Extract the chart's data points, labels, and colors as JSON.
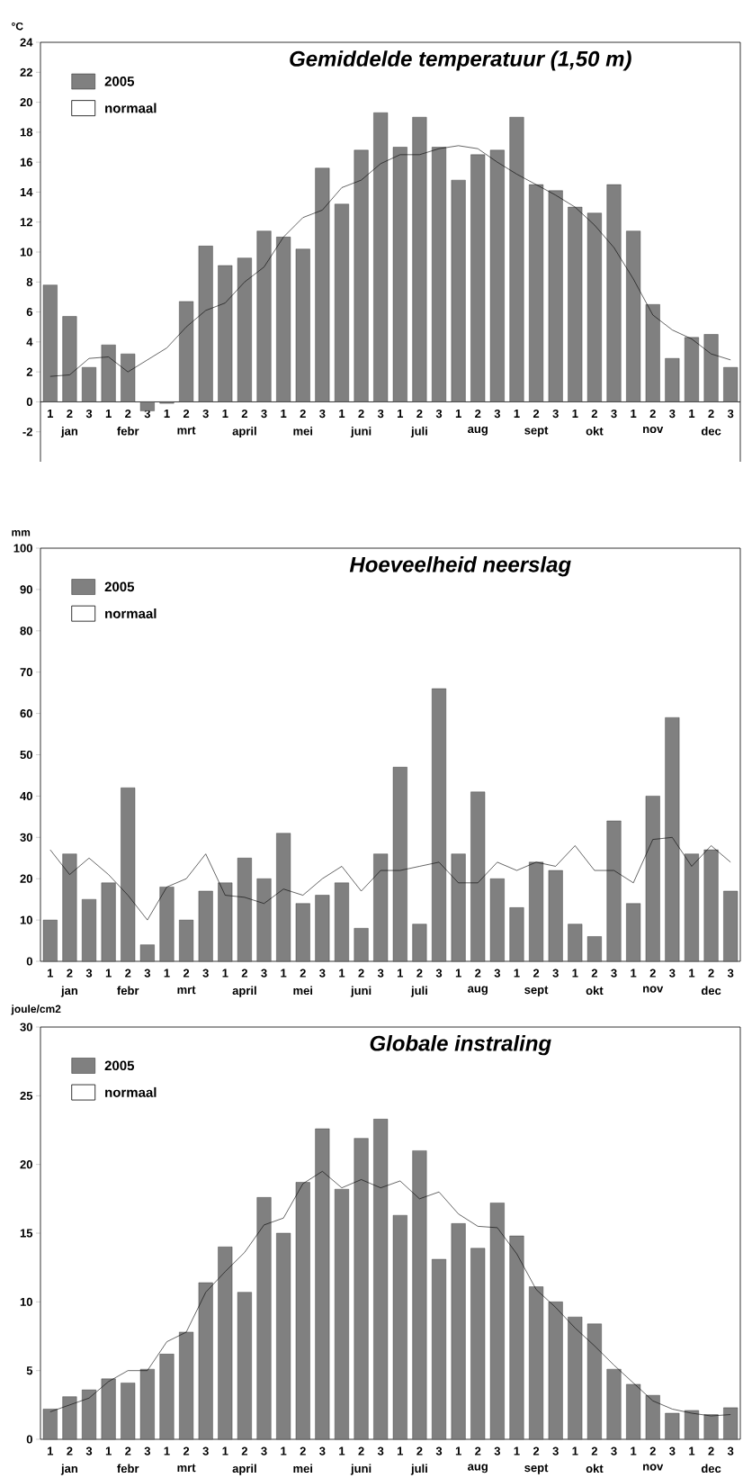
{
  "chart_data": [
    {
      "type": "bar",
      "title": "Gemiddelde temperatuur (1,50 m)",
      "ylabel": "°C",
      "legend": "top left",
      "categories": [
        "1",
        "2",
        "3",
        "1",
        "2",
        "3",
        "1",
        "2",
        "3",
        "1",
        "2",
        "3",
        "1",
        "2",
        "3",
        "1",
        "2",
        "3",
        "1",
        "2",
        "3",
        "1",
        "2",
        "3",
        "1",
        "2",
        "3",
        "1",
        "2",
        "3",
        "1",
        "2",
        "3",
        "1",
        "2",
        "3"
      ],
      "annotations": [
        "jan",
        "febr",
        "mrt",
        "april",
        "mei",
        "juni",
        "juli",
        "aug",
        "sept",
        "okt",
        "nov",
        "dec"
      ],
      "ylim": [
        -4,
        24
      ],
      "yticks": [
        -2,
        0,
        2,
        4,
        6,
        8,
        10,
        12,
        14,
        16,
        18,
        20,
        22,
        24
      ],
      "series": [
        {
          "name": "2005",
          "color": "#808080",
          "values": [
            7.8,
            5.7,
            2.3,
            3.8,
            3.2,
            -0.6,
            -0.1,
            6.7,
            10.4,
            9.1,
            9.6,
            11.4,
            11.0,
            10.2,
            15.6,
            13.2,
            16.8,
            19.3,
            17.0,
            19.0,
            17.0,
            14.8,
            16.5,
            16.8,
            19.0,
            14.5,
            14.1,
            13.0,
            12.6,
            14.5,
            11.4,
            6.5,
            2.9,
            4.3,
            4.5,
            2.3
          ]
        },
        {
          "name": "normaal",
          "type": "line",
          "color": "#000000",
          "values": [
            1.7,
            1.8,
            2.9,
            3.0,
            2.0,
            2.8,
            3.6,
            5.0,
            6.1,
            6.6,
            8.0,
            9.0,
            11.0,
            12.3,
            12.8,
            14.3,
            14.8,
            15.9,
            16.5,
            16.5,
            16.9,
            17.1,
            16.9,
            16.0,
            15.2,
            14.5,
            13.8,
            13.0,
            11.8,
            10.3,
            8.2,
            5.8,
            4.8,
            4.2,
            3.2,
            2.8
          ]
        }
      ]
    },
    {
      "type": "bar",
      "title": "Hoeveelheid neerslag",
      "ylabel": "mm",
      "legend": "top left",
      "categories": [
        "1",
        "2",
        "3",
        "1",
        "2",
        "3",
        "1",
        "2",
        "3",
        "1",
        "2",
        "3",
        "1",
        "2",
        "3",
        "1",
        "2",
        "3",
        "1",
        "2",
        "3",
        "1",
        "2",
        "3",
        "1",
        "2",
        "3",
        "1",
        "2",
        "3",
        "1",
        "2",
        "3",
        "1",
        "2",
        "3"
      ],
      "annotations": [
        "jan",
        "febr",
        "mrt",
        "april",
        "mei",
        "juni",
        "juli",
        "aug",
        "sept",
        "okt",
        "nov",
        "dec"
      ],
      "ylim": [
        0,
        100
      ],
      "yticks": [
        0,
        10,
        20,
        30,
        40,
        50,
        60,
        70,
        80,
        90,
        100
      ],
      "series": [
        {
          "name": "2005",
          "color": "#808080",
          "values": [
            10,
            26,
            15,
            19,
            42,
            4,
            18,
            10,
            17,
            19,
            25,
            20,
            31,
            14,
            16,
            19,
            8,
            26,
            47,
            9,
            66,
            26,
            41,
            20,
            13,
            24,
            22,
            9,
            6,
            34,
            14,
            40,
            59,
            26,
            27,
            17
          ]
        },
        {
          "name": "normaal",
          "type": "line",
          "color": "#000000",
          "values": [
            27,
            21,
            25,
            21,
            16,
            10,
            18,
            20,
            26,
            16,
            15.5,
            14,
            17.5,
            16,
            20,
            23,
            17,
            22,
            22,
            23,
            24,
            19,
            19,
            24,
            22,
            24,
            23,
            28,
            22,
            22,
            19,
            29.5,
            30,
            23,
            28,
            24
          ]
        }
      ]
    },
    {
      "type": "bar",
      "title": "Globale instraling",
      "ylabel": "joule/cm2",
      "legend": "top left",
      "categories": [
        "1",
        "2",
        "3",
        "1",
        "2",
        "3",
        "1",
        "2",
        "3",
        "1",
        "2",
        "3",
        "1",
        "2",
        "3",
        "1",
        "2",
        "3",
        "1",
        "2",
        "3",
        "1",
        "2",
        "3",
        "1",
        "2",
        "3",
        "1",
        "2",
        "3",
        "1",
        "2",
        "3",
        "1",
        "2",
        "3"
      ],
      "annotations": [
        "jan",
        "febr",
        "mrt",
        "april",
        "mei",
        "juni",
        "juli",
        "aug",
        "sept",
        "okt",
        "nov",
        "dec"
      ],
      "ylim": [
        0,
        30
      ],
      "yticks": [
        0,
        5,
        10,
        15,
        20,
        25,
        30
      ],
      "series": [
        {
          "name": "2005",
          "color": "#808080",
          "values": [
            2.2,
            3.1,
            3.6,
            4.4,
            4.1,
            5.1,
            6.2,
            7.8,
            11.4,
            14.0,
            10.7,
            17.6,
            15.0,
            18.7,
            22.6,
            18.2,
            21.9,
            23.3,
            16.3,
            21.0,
            13.1,
            15.7,
            13.9,
            17.2,
            14.8,
            11.1,
            10.0,
            8.9,
            8.4,
            5.1,
            4.0,
            3.2,
            1.9,
            2.1,
            1.8,
            2.3
          ]
        },
        {
          "name": "normaal",
          "type": "line",
          "color": "#000000",
          "values": [
            2.0,
            2.5,
            3.0,
            4.2,
            5.0,
            5.0,
            7.1,
            7.8,
            10.7,
            12.2,
            13.6,
            15.6,
            16.1,
            18.6,
            19.5,
            18.3,
            18.9,
            18.3,
            18.8,
            17.5,
            18.0,
            16.4,
            15.5,
            15.4,
            13.5,
            10.9,
            9.6,
            8.1,
            6.8,
            5.4,
            4.1,
            2.8,
            2.2,
            1.9,
            1.7,
            1.8
          ]
        }
      ]
    }
  ]
}
